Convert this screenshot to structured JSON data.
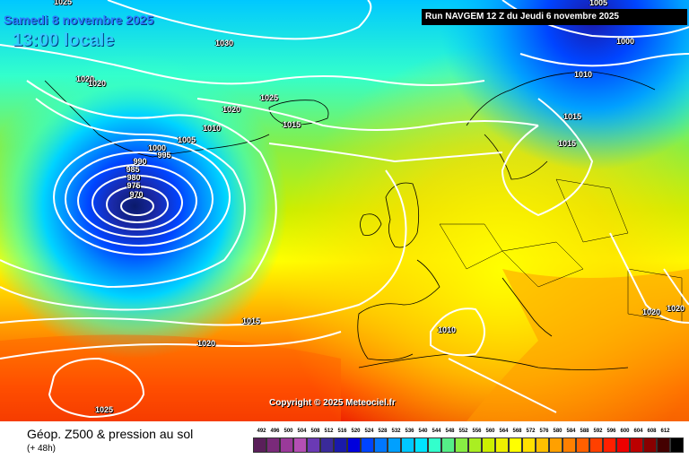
{
  "header": {
    "date": "Samedi 8 novembre 2025",
    "time": "13:00 locale",
    "run": "Run NAVGEM 12 Z du Jeudi 6 novembre 2025"
  },
  "copyright": "Copyright © 2025 Meteociel.fr",
  "isobars": [
    "1025",
    "1030",
    "1020",
    "1020",
    "1025",
    "1020",
    "1015",
    "1010",
    "1005",
    "1000",
    "995",
    "990",
    "985",
    "980",
    "975",
    "970",
    "1005",
    "1000",
    "1010",
    "1015",
    "1015",
    "1015",
    "1020",
    "1010",
    "1020",
    "1020",
    "1025"
  ],
  "legend": {
    "title": "Géop. Z500 & pression au sol",
    "subtitle": "(+ 48h)",
    "scale": [
      "492",
      "496",
      "500",
      "504",
      "508",
      "512",
      "516",
      "520",
      "524",
      "528",
      "532",
      "536",
      "540",
      "544",
      "548",
      "552",
      "556",
      "560",
      "564",
      "568",
      "572",
      "576",
      "580",
      "584",
      "588",
      "592",
      "596",
      "600",
      "604",
      "608",
      "612"
    ],
    "colors": [
      "#5a1f5a",
      "#7a2a7a",
      "#9a3a9a",
      "#b44fb4",
      "#6a3ab4",
      "#3a2a9a",
      "#1a1aaa",
      "#0000dd",
      "#0044ff",
      "#0077ff",
      "#00a0ff",
      "#00c8ff",
      "#00e4ff",
      "#33ffcc",
      "#55ee88",
      "#88ee44",
      "#aaee22",
      "#ccee00",
      "#eef000",
      "#ffff00",
      "#ffe000",
      "#ffc000",
      "#ffa000",
      "#ff8000",
      "#ff6000",
      "#ff4000",
      "#ff2000",
      "#ee0000",
      "#bb0000",
      "#880000",
      "#440000",
      "#000000"
    ]
  }
}
